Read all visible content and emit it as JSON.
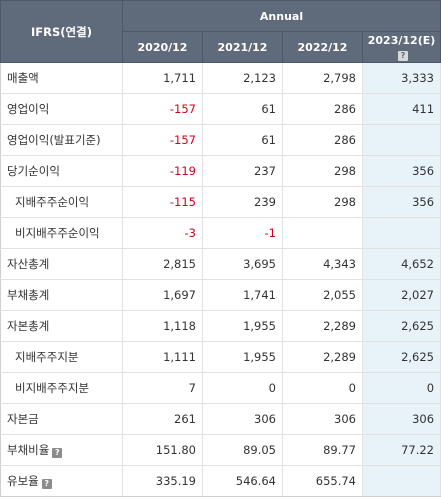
{
  "header": {
    "corner_label": "IFRS(연결)",
    "group_label": "Annual",
    "years": [
      "2020/12",
      "2021/12",
      "2022/12",
      "2023/12(E)"
    ]
  },
  "help_icon": "question-icon",
  "rows": [
    {
      "label": "매출액",
      "values": [
        "1,711",
        "2,123",
        "2,798",
        "3,333"
      ]
    },
    {
      "label": "영업이익",
      "values": [
        "-157",
        "61",
        "286",
        "411"
      ]
    },
    {
      "label": "영업이익(발표기준)",
      "values": [
        "-157",
        "61",
        "286",
        ""
      ]
    },
    {
      "label": "당기순이익",
      "values": [
        "-119",
        "237",
        "298",
        "356"
      ]
    },
    {
      "label": "지배주주순이익",
      "values": [
        "-115",
        "239",
        "298",
        "356"
      ]
    },
    {
      "label": "비지배주주순이익",
      "values": [
        "-3",
        "-1",
        "",
        ""
      ]
    },
    {
      "label": "자산총계",
      "values": [
        "2,815",
        "3,695",
        "4,343",
        "4,652"
      ]
    },
    {
      "label": "부채총계",
      "values": [
        "1,697",
        "1,741",
        "2,055",
        "2,027"
      ]
    },
    {
      "label": "자본총계",
      "values": [
        "1,118",
        "1,955",
        "2,289",
        "2,625"
      ]
    },
    {
      "label": "지배주주지분",
      "values": [
        "1,111",
        "1,955",
        "2,289",
        "2,625"
      ]
    },
    {
      "label": "비지배주주지분",
      "values": [
        "7",
        "0",
        "0",
        "0"
      ]
    },
    {
      "label": "자본금",
      "values": [
        "261",
        "306",
        "306",
        "306"
      ]
    },
    {
      "label": "부채비율",
      "values": [
        "151.80",
        "89.05",
        "89.77",
        "77.22"
      ]
    },
    {
      "label": "유보율",
      "values": [
        "335.19",
        "546.64",
        "655.74",
        ""
      ]
    }
  ]
}
